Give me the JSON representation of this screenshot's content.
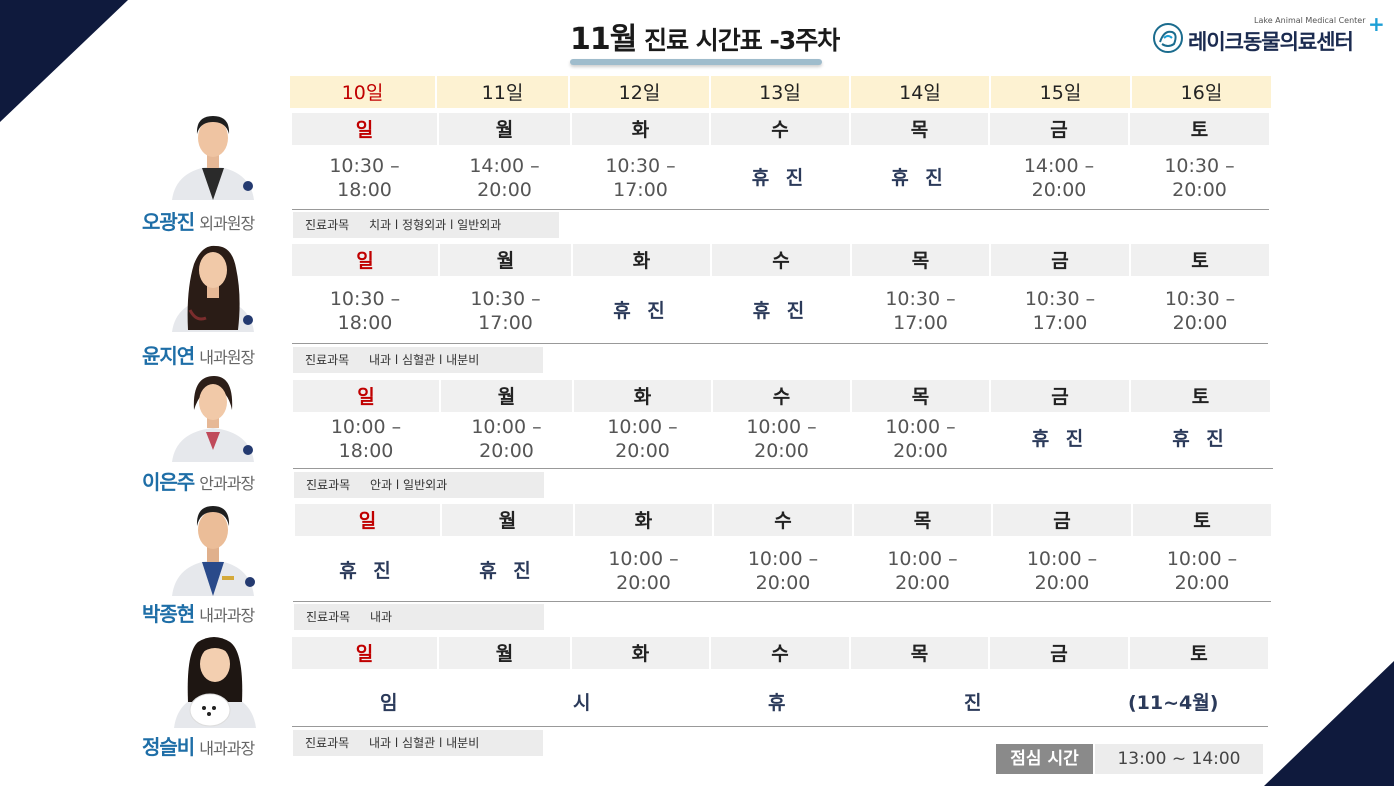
{
  "header": {
    "title_month": "11월",
    "title_rest": " 진료 시간표 -3주차",
    "logo_en": "Lake Animal Medical Center",
    "logo_ko": "레이크동물의료센터",
    "logo_plus": "+"
  },
  "dates": [
    "10일",
    "11일",
    "12일",
    "13일",
    "14일",
    "15일",
    "16일"
  ],
  "weekdays": [
    "일",
    "월",
    "화",
    "수",
    "목",
    "금",
    "토"
  ],
  "dept_label": "진료과목",
  "doctors": [
    {
      "name": "오광진",
      "title": "외과원장",
      "times": [
        [
          "10:30 –",
          "18:00"
        ],
        [
          "14:00 –",
          "20:00"
        ],
        [
          "10:30 –",
          "17:00"
        ],
        [
          "휴진",
          ""
        ],
        [
          "휴진",
          ""
        ],
        [
          "14:00 –",
          "20:00"
        ],
        [
          "10:30 –",
          "20:00"
        ]
      ],
      "departments": "치과 l 정형외과 l 일반외과"
    },
    {
      "name": "윤지연",
      "title": "내과원장",
      "times": [
        [
          "10:30 –",
          "18:00"
        ],
        [
          "10:30 –",
          "17:00"
        ],
        [
          "휴진",
          ""
        ],
        [
          "휴진",
          ""
        ],
        [
          "10:30 –",
          "17:00"
        ],
        [
          "10:30 –",
          "17:00"
        ],
        [
          "10:30 –",
          "20:00"
        ]
      ],
      "departments": "내과 l 심혈관 l 내분비"
    },
    {
      "name": "이은주",
      "title": "안과과장",
      "times": [
        [
          "10:00 –",
          "18:00"
        ],
        [
          "10:00 –",
          "20:00"
        ],
        [
          "10:00 –",
          "20:00"
        ],
        [
          "10:00 –",
          "20:00"
        ],
        [
          "10:00 –",
          "20:00"
        ],
        [
          "휴진",
          ""
        ],
        [
          "휴진",
          ""
        ]
      ],
      "departments": "안과 l 일반외과"
    },
    {
      "name": "박종현",
      "title": "내과과장",
      "times": [
        [
          "휴진",
          ""
        ],
        [
          "휴진",
          ""
        ],
        [
          "10:00 –",
          "20:00"
        ],
        [
          "10:00 –",
          "20:00"
        ],
        [
          "10:00 –",
          "20:00"
        ],
        [
          "10:00 –",
          "20:00"
        ],
        [
          "10:00 –",
          "20:00"
        ]
      ],
      "departments": "내과"
    },
    {
      "name": "정슬비",
      "title": "내과과장",
      "temp_closure": [
        "임",
        "시",
        "휴",
        "진",
        "(11~4월)"
      ],
      "departments": "내과 l 심혈관 l 내분비"
    }
  ],
  "lunch": {
    "label": "점심 시간",
    "time": "13:00 ~ 14:00"
  },
  "colors": {
    "navy": "#0f1a3d",
    "sunday_red": "#c00000",
    "name_blue": "#1e6ea7",
    "date_bg": "#fdf2d2"
  },
  "closed_label": "휴진"
}
